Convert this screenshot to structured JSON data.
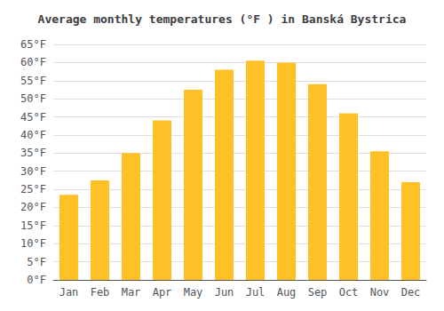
{
  "chart_data": {
    "type": "bar",
    "title": "Average monthly temperatures (°F ) in Banská Bystrica",
    "categories": [
      "Jan",
      "Feb",
      "Mar",
      "Apr",
      "May",
      "Jun",
      "Jul",
      "Aug",
      "Sep",
      "Oct",
      "Nov",
      "Dec"
    ],
    "values": [
      23.5,
      27.5,
      35.0,
      44.0,
      52.5,
      58.0,
      60.5,
      60.0,
      54.0,
      46.0,
      35.5,
      27.0
    ],
    "color": "#FFC125",
    "ylim": [
      0,
      65
    ],
    "yticks": [
      {
        "value": 0,
        "label": "0°F"
      },
      {
        "value": 5,
        "label": "5°F"
      },
      {
        "value": 10,
        "label": "10°F"
      },
      {
        "value": 15,
        "label": "15°F"
      },
      {
        "value": 20,
        "label": "20°F"
      },
      {
        "value": 25,
        "label": "25°F"
      },
      {
        "value": 30,
        "label": "30°F"
      },
      {
        "value": 35,
        "label": "35°F"
      },
      {
        "value": 40,
        "label": "40°F"
      },
      {
        "value": 45,
        "label": "45°F"
      },
      {
        "value": 50,
        "label": "50°F"
      },
      {
        "value": 55,
        "label": "55°F"
      },
      {
        "value": 60,
        "label": "60°F"
      },
      {
        "value": 65,
        "label": "65°F"
      }
    ],
    "grid": true
  }
}
